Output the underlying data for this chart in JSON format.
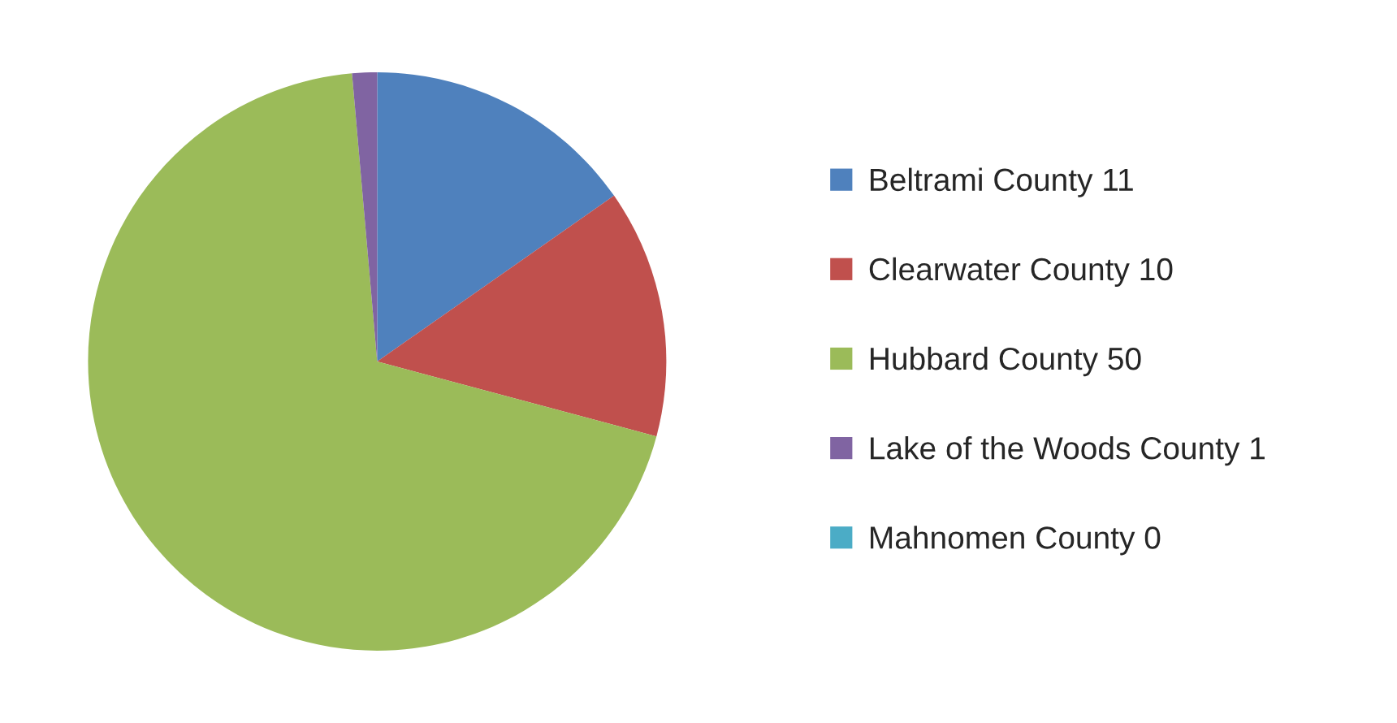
{
  "chart_data": {
    "type": "pie",
    "categories": [
      "Beltrami County 11",
      "Clearwater County 10",
      "Hubbard County 50",
      "Lake of the Woods County 1",
      "Mahnomen County 0"
    ],
    "values": [
      11,
      10,
      50,
      1,
      0
    ],
    "colors": [
      "#4f81bd",
      "#c0504d",
      "#9bbb59",
      "#8064a2",
      "#4bacc6"
    ],
    "legend": "right"
  }
}
